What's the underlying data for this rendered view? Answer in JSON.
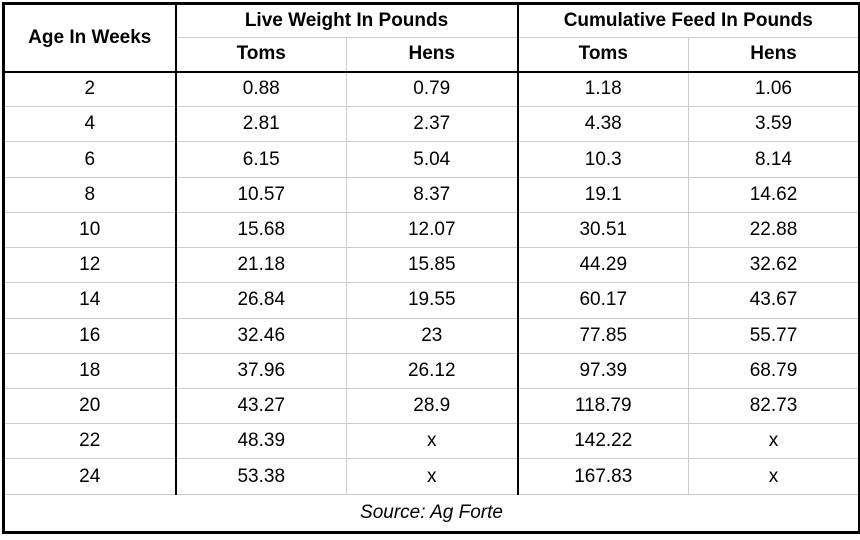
{
  "chart_data": {
    "type": "table",
    "row_header": "Age In Weeks",
    "column_groups": [
      {
        "label": "Live Weight In Pounds",
        "columns": [
          "Toms",
          "Hens"
        ]
      },
      {
        "label": "Cumulative Feed In Pounds",
        "columns": [
          "Toms",
          "Hens"
        ]
      }
    ],
    "rows": [
      [
        "2",
        "0.88",
        "0.79",
        "1.18",
        "1.06"
      ],
      [
        "4",
        "2.81",
        "2.37",
        "4.38",
        "3.59"
      ],
      [
        "6",
        "6.15",
        "5.04",
        "10.3",
        "8.14"
      ],
      [
        "8",
        "10.57",
        "8.37",
        "19.1",
        "14.62"
      ],
      [
        "10",
        "15.68",
        "12.07",
        "30.51",
        "22.88"
      ],
      [
        "12",
        "21.18",
        "15.85",
        "44.29",
        "32.62"
      ],
      [
        "14",
        "26.84",
        "19.55",
        "60.17",
        "43.67"
      ],
      [
        "16",
        "32.46",
        "23",
        "77.85",
        "55.77"
      ],
      [
        "18",
        "37.96",
        "26.12",
        "97.39",
        "68.79"
      ],
      [
        "20",
        "43.27",
        "28.9",
        "118.79",
        "82.73"
      ],
      [
        "22",
        "48.39",
        "x",
        "142.22",
        "x"
      ],
      [
        "24",
        "53.38",
        "x",
        "167.83",
        "x"
      ]
    ],
    "missing_value_marker": "x",
    "source": "Source: Ag Forte"
  },
  "colors": {
    "border_strong": "#000000",
    "border_light": "#cccccc",
    "background": "#ffffff",
    "text": "#000000"
  }
}
